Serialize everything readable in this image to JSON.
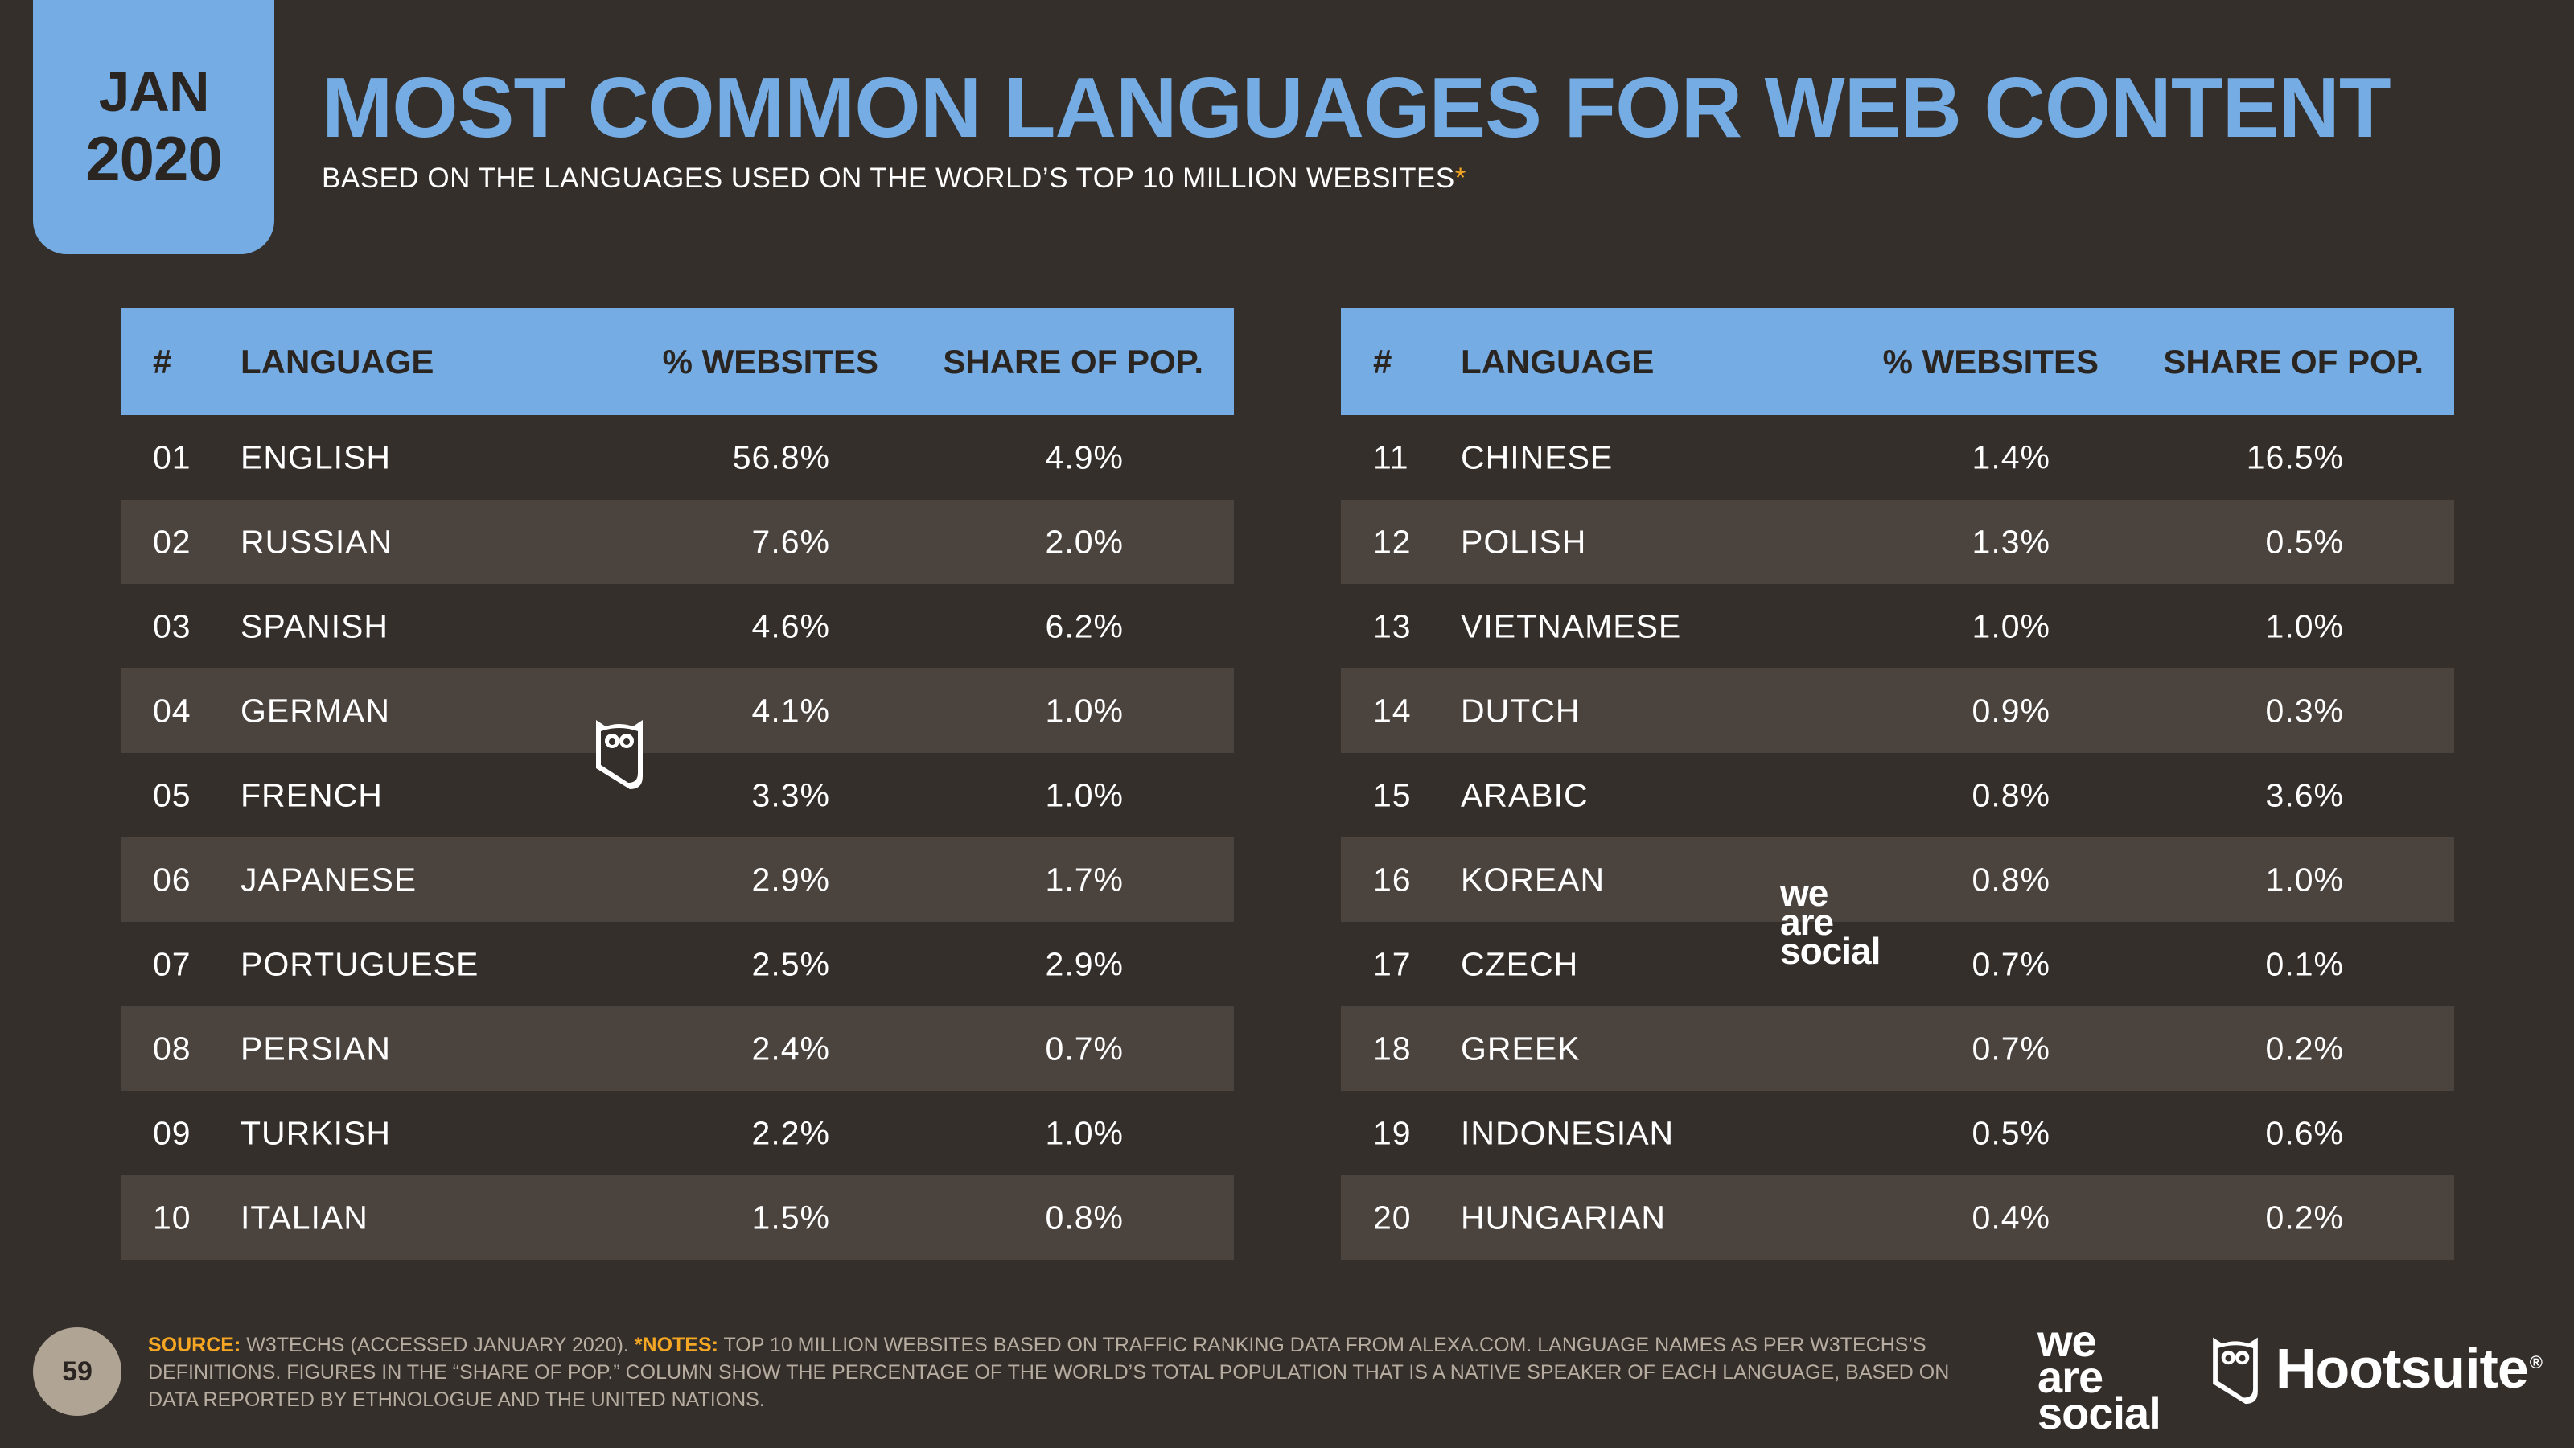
{
  "date_tab": {
    "month": "JAN",
    "year": "2020"
  },
  "title": "MOST COMMON LANGUAGES FOR WEB CONTENT",
  "subtitle": "BASED ON THE LANGUAGES USED ON THE WORLD’S TOP 10 MILLION WEBSITES",
  "subtitle_mark": "*",
  "table_headers": {
    "num": "#",
    "language": "LANGUAGE",
    "websites": "% WEBSITES",
    "share": "SHARE OF POP."
  },
  "left_rows": [
    {
      "num": "01",
      "language": "ENGLISH",
      "websites": "56.8%",
      "share": "4.9%"
    },
    {
      "num": "02",
      "language": "RUSSIAN",
      "websites": "7.6%",
      "share": "2.0%"
    },
    {
      "num": "03",
      "language": "SPANISH",
      "websites": "4.6%",
      "share": "6.2%"
    },
    {
      "num": "04",
      "language": "GERMAN",
      "websites": "4.1%",
      "share": "1.0%"
    },
    {
      "num": "05",
      "language": "FRENCH",
      "websites": "3.3%",
      "share": "1.0%"
    },
    {
      "num": "06",
      "language": "JAPANESE",
      "websites": "2.9%",
      "share": "1.7%"
    },
    {
      "num": "07",
      "language": "PORTUGUESE",
      "websites": "2.5%",
      "share": "2.9%"
    },
    {
      "num": "08",
      "language": "PERSIAN",
      "websites": "2.4%",
      "share": "0.7%"
    },
    {
      "num": "09",
      "language": "TURKISH",
      "websites": "2.2%",
      "share": "1.0%"
    },
    {
      "num": "10",
      "language": "ITALIAN",
      "websites": "1.5%",
      "share": "0.8%"
    }
  ],
  "right_rows": [
    {
      "num": "11",
      "language": "CHINESE",
      "websites": "1.4%",
      "share": "16.5%"
    },
    {
      "num": "12",
      "language": "POLISH",
      "websites": "1.3%",
      "share": "0.5%"
    },
    {
      "num": "13",
      "language": "VIETNAMESE",
      "websites": "1.0%",
      "share": "1.0%"
    },
    {
      "num": "14",
      "language": "DUTCH",
      "websites": "0.9%",
      "share": "0.3%"
    },
    {
      "num": "15",
      "language": "ARABIC",
      "websites": "0.8%",
      "share": "3.6%"
    },
    {
      "num": "16",
      "language": "KOREAN",
      "websites": "0.8%",
      "share": "1.0%"
    },
    {
      "num": "17",
      "language": "CZECH",
      "websites": "0.7%",
      "share": "0.1%"
    },
    {
      "num": "18",
      "language": "GREEK",
      "websites": "0.7%",
      "share": "0.2%"
    },
    {
      "num": "19",
      "language": "INDONESIAN",
      "websites": "0.5%",
      "share": "0.6%"
    },
    {
      "num": "20",
      "language": "HUNGARIAN",
      "websites": "0.4%",
      "share": "0.2%"
    }
  ],
  "watermark_text": {
    "line1": "we",
    "line2": "are",
    "line3": "social"
  },
  "page_number": "59",
  "footnote": {
    "source_label": "SOURCE:",
    "source_text": " W3TECHS (ACCESSED JANUARY 2020). ",
    "notes_label": "*NOTES:",
    "notes_text": " TOP 10 MILLION WEBSITES BASED ON TRAFFIC RANKING DATA FROM ALEXA.COM. LANGUAGE NAMES AS PER W3TECHS’S DEFINITIONS. FIGURES IN THE “SHARE OF POP.” COLUMN SHOW THE PERCENTAGE OF THE WORLD’S TOTAL POPULATION THAT IS A NATIVE SPEAKER OF EACH LANGUAGE, BASED ON DATA REPORTED BY ETHNOLOGUE AND THE UNITED NATIONS."
  },
  "logos": {
    "was": {
      "line1": "we",
      "line2": "are",
      "line3": "social"
    },
    "hootsuite": "Hootsuite",
    "hootsuite_reg": "®",
    "icons": [
      "owl-icon"
    ]
  },
  "colors": {
    "background": "#352f2b",
    "accent": "#74ace3",
    "row_alt": "#4b433e",
    "highlight": "#f5a623"
  }
}
